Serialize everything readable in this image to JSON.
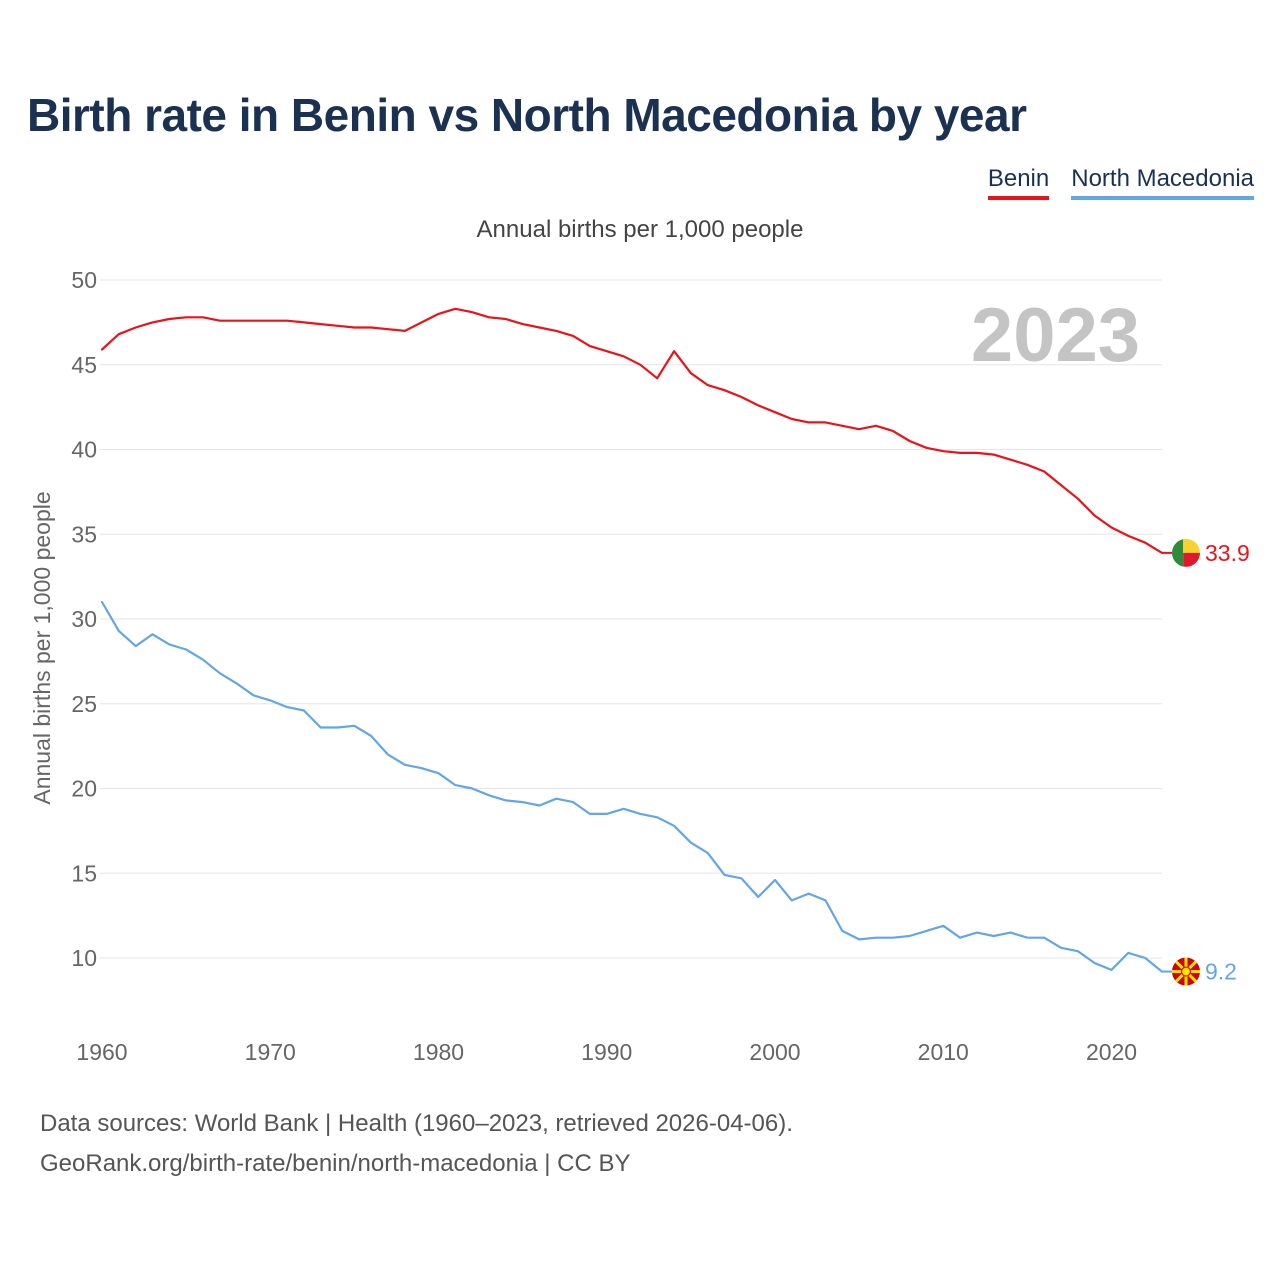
{
  "title": "Birth rate in Benin vs North Macedonia by year",
  "subtitle": "Annual births per 1,000 people",
  "legend": [
    {
      "label": "Benin",
      "color": "#e8131b"
    },
    {
      "label": "North Macedonia",
      "color": "#62a6e6"
    }
  ],
  "year_label": "2023",
  "end_labels": {
    "benin": "33.9",
    "north_macedonia": "9.2"
  },
  "footer": {
    "line1": "Data sources: World Bank | Health (1960–2023, retrieved 2026-04-06).",
    "line2": "GeoRank.org/birth-rate/benin/north-macedonia | CC BY"
  },
  "chart_data": {
    "type": "line",
    "ylabel": "Annual births per 1,000 people",
    "xlabel": "",
    "xlim": [
      1960,
      2023
    ],
    "ylim": [
      10,
      50
    ],
    "x_ticks": [
      1960,
      1970,
      1980,
      1990,
      2000,
      2010,
      2020
    ],
    "y_ticks": [
      10,
      15,
      20,
      25,
      30,
      35,
      40,
      45,
      50
    ],
    "grid": true,
    "x": [
      1960,
      1961,
      1962,
      1963,
      1964,
      1965,
      1966,
      1967,
      1968,
      1969,
      1970,
      1971,
      1972,
      1973,
      1974,
      1975,
      1976,
      1977,
      1978,
      1979,
      1980,
      1981,
      1982,
      1983,
      1984,
      1985,
      1986,
      1987,
      1988,
      1989,
      1990,
      1991,
      1992,
      1993,
      1994,
      1995,
      1996,
      1997,
      1998,
      1999,
      2000,
      2001,
      2002,
      2003,
      2004,
      2005,
      2006,
      2007,
      2008,
      2009,
      2010,
      2011,
      2012,
      2013,
      2014,
      2015,
      2016,
      2017,
      2018,
      2019,
      2020,
      2021,
      2022,
      2023
    ],
    "series": [
      {
        "name": "Benin",
        "color": "#e8131b",
        "values": [
          45.9,
          46.8,
          47.2,
          47.5,
          47.7,
          47.8,
          47.8,
          47.6,
          47.6,
          47.6,
          47.6,
          47.6,
          47.5,
          47.4,
          47.3,
          47.2,
          47.2,
          47.1,
          47.0,
          47.5,
          48.0,
          48.3,
          48.1,
          47.8,
          47.7,
          47.4,
          47.2,
          47.0,
          46.7,
          46.1,
          45.8,
          45.5,
          45.0,
          44.2,
          45.8,
          44.5,
          43.8,
          43.5,
          43.1,
          42.6,
          42.2,
          41.8,
          41.6,
          41.6,
          41.4,
          41.2,
          41.4,
          41.1,
          40.5,
          40.1,
          39.9,
          39.8,
          39.8,
          39.7,
          39.4,
          39.1,
          38.7,
          37.9,
          37.1,
          36.1,
          35.4,
          34.9,
          34.5,
          33.9
        ]
      },
      {
        "name": "North Macedonia",
        "color": "#62a6e6",
        "values": [
          31.0,
          29.3,
          28.4,
          29.1,
          28.5,
          28.2,
          27.6,
          26.8,
          26.2,
          25.5,
          25.2,
          24.8,
          24.6,
          23.6,
          23.6,
          23.7,
          23.1,
          22.0,
          21.4,
          21.2,
          20.9,
          20.2,
          20.0,
          19.6,
          19.3,
          19.2,
          19.0,
          19.4,
          19.2,
          18.5,
          18.5,
          18.8,
          18.5,
          18.3,
          17.8,
          16.8,
          16.2,
          14.9,
          14.7,
          13.6,
          14.6,
          13.4,
          13.8,
          13.4,
          11.6,
          11.1,
          11.2,
          11.2,
          11.3,
          11.6,
          11.9,
          11.2,
          11.5,
          11.3,
          11.5,
          11.2,
          11.2,
          10.6,
          10.4,
          9.7,
          9.3,
          10.3,
          10.0,
          9.2
        ]
      }
    ],
    "end_markers": [
      {
        "series": "Benin",
        "flag": "benin-flag-icon",
        "value": 33.9
      },
      {
        "series": "North Macedonia",
        "flag": "north-macedonia-flag-icon",
        "value": 9.2
      }
    ]
  }
}
